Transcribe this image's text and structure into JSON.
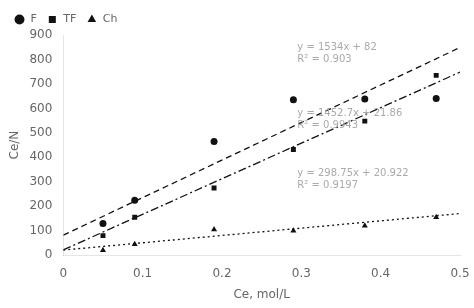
{
  "chart_data": {
    "type": "scatter",
    "xlabel": "Ce, mol/L",
    "ylabel": "Ce/N",
    "xlim": [
      0,
      0.5
    ],
    "ylim": [
      0,
      900
    ],
    "xticks": [
      0,
      0.1,
      0.2,
      0.3,
      0.4,
      0.5
    ],
    "yticks": [
      0,
      100,
      200,
      300,
      400,
      500,
      600,
      700,
      800,
      900
    ],
    "grid": false,
    "legend": "upper left",
    "series": [
      {
        "name": "F",
        "color": "#111111",
        "marker": "circle",
        "line_style": "dashed",
        "x": [
          0.05,
          0.09,
          0.19,
          0.29,
          0.38,
          0.47
        ],
        "values": [
          130,
          225,
          465,
          635,
          638,
          640
        ],
        "trend": {
          "x": [
            0,
            0.5
          ],
          "values": [
            82,
            849
          ]
        }
      },
      {
        "name": "TF",
        "color": "#111111",
        "marker": "square",
        "line_style": "dashdot",
        "x": [
          0.05,
          0.09,
          0.19,
          0.29,
          0.38,
          0.47
        ],
        "values": [
          80,
          155,
          275,
          432,
          548,
          735
        ],
        "trend": {
          "x": [
            0,
            0.5
          ],
          "values": [
            21.86,
            748.21
          ]
        }
      },
      {
        "name": "Ch",
        "color": "#111111",
        "marker": "triangle",
        "line_style": "dotted",
        "x": [
          0.05,
          0.09,
          0.19,
          0.29,
          0.38,
          0.47
        ],
        "values": [
          20,
          45,
          105,
          100,
          120,
          155
        ],
        "trend": {
          "x": [
            0,
            0.5
          ],
          "values": [
            20.922,
            170.297
          ]
        }
      }
    ],
    "annotations": [
      {
        "text": [
          "y = 1534x + 82",
          "R² = 0.903"
        ],
        "x": 0.295,
        "y": 870,
        "color": "#aaaaaa"
      },
      {
        "text": [
          "y = 1452.7x + 21.86",
          "R² = 0.9943"
        ],
        "x": 0.295,
        "y": 600,
        "color": "#aaaaaa"
      },
      {
        "text": [
          "y = 298.75x + 20.922",
          "R² = 0.9197"
        ],
        "x": 0.295,
        "y": 355,
        "color": "#aaaaaa"
      }
    ]
  }
}
